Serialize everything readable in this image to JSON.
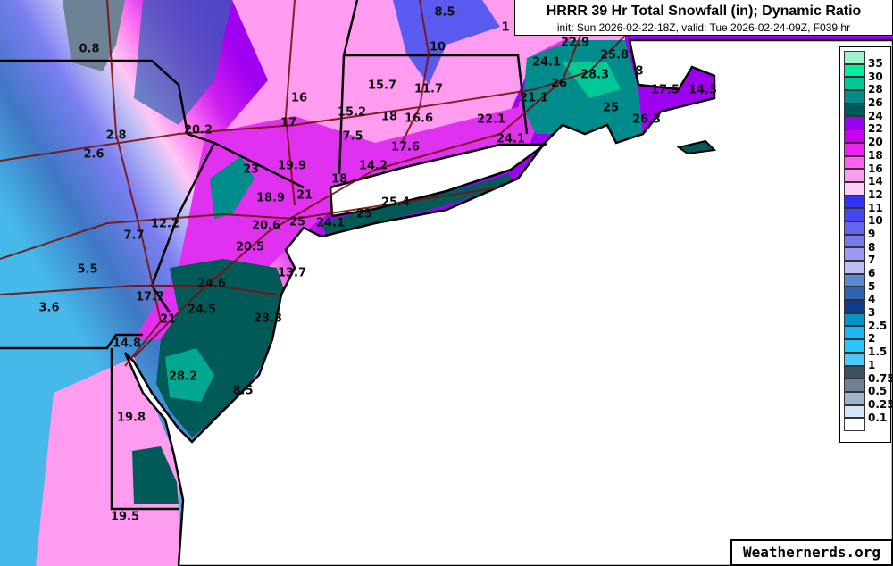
{
  "header": {
    "title": "HRRR 39 Hr Total Snowfall (in); Dynamic Ratio",
    "subtitle": "init: Sun 2026-02-22-18Z, valid: Tue 2026-02-24-09Z, F039 hr"
  },
  "watermark": "Weathernerds.org",
  "legend": {
    "labels": [
      "35",
      "30",
      "28",
      "26",
      "24",
      "22",
      "20",
      "18",
      "16",
      "14",
      "12",
      "11",
      "10",
      "9",
      "8",
      "7",
      "6",
      "5",
      "4",
      "3",
      "2.5",
      "2",
      "1.5",
      "1",
      "0.75",
      "0.5",
      "0.25",
      "0.1"
    ],
    "colors": [
      "#9ff2cf",
      "#00ef9a",
      "#00c896",
      "#008c8a",
      "#005a58",
      "#9800f0",
      "#c800f0",
      "#f020f0",
      "#ff5ef0",
      "#ff9cf0",
      "#ffcdf5",
      "#3232f5",
      "#4646f0",
      "#6464f0",
      "#7a7af0",
      "#9a9af5",
      "#bebef5",
      "#5a8cd2",
      "#2d64b4",
      "#0f3c8c",
      "#0096c8",
      "#1eb4f5",
      "#28c8fa",
      "#50c8f5",
      "#3c5064",
      "#6e8296",
      "#a0b4c8",
      "#d2e6fa",
      "#ffffff"
    ]
  },
  "map": {
    "labels": [
      "0.8",
      "2.8",
      "2.6",
      "7.7",
      "12.2",
      "5.5",
      "3.6",
      "17.7",
      "24.6",
      "24.5",
      "21",
      "14.8",
      "28.2",
      "8.5",
      "23.3",
      "13.7",
      "19.8",
      "19.5",
      "23",
      "19.9",
      "18.9",
      "21",
      "20.6",
      "25",
      "20.5",
      "24.1",
      "25",
      "25.4",
      "18",
      "14.2",
      "17.6",
      "7.5",
      "17",
      "16",
      "20.2",
      "15.2",
      "15.7",
      "18",
      "16.6",
      "11.7",
      "10",
      "8.5",
      "22.1",
      "24.1",
      "21.1",
      "24.1",
      "22.9",
      "25.8",
      "28.3",
      "26",
      "8",
      "17.5",
      "14.3",
      "25",
      "26.3",
      "1"
    ]
  }
}
